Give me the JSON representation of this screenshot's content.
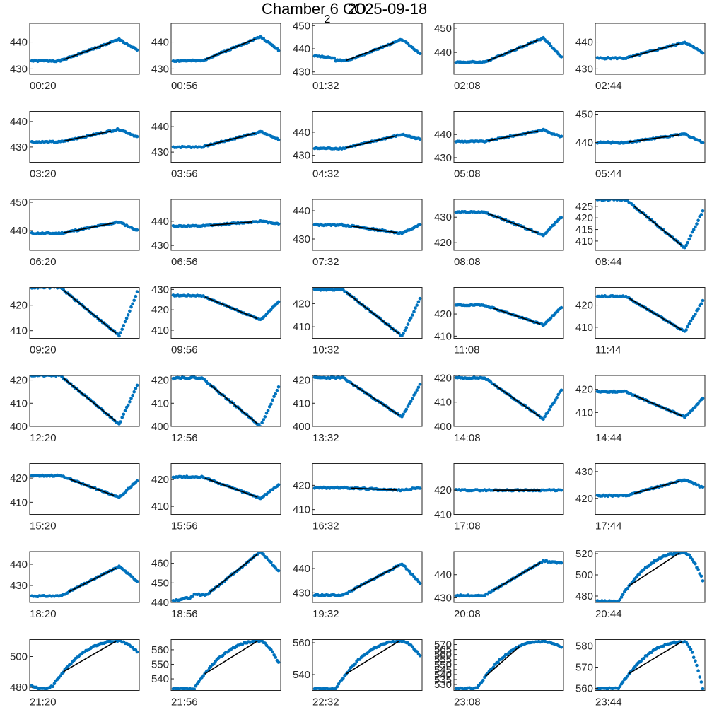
{
  "title": {
    "prefix": "Chamber 6 CO",
    "subscript": "2",
    "date": "2025-09-18"
  },
  "colors": {
    "points": "#0072bd",
    "fit": "#000000",
    "axes": "#262626"
  },
  "chart_data": {
    "type": "scatter",
    "layout_grid": {
      "rows": 8,
      "cols": 5
    },
    "xlabel": "",
    "ylabel": "",
    "panels": [
      {
        "label": "00:20",
        "yticks": [
          430,
          440
        ],
        "ylim": [
          428,
          447
        ],
        "base": 433,
        "peak": 441,
        "end": 437,
        "mode": "rise",
        "fit": [
          0.3,
          0.75
        ]
      },
      {
        "label": "00:56",
        "yticks": [
          430,
          440
        ],
        "ylim": [
          428,
          447
        ],
        "base": 433,
        "peak": 442,
        "end": 437,
        "mode": "rise",
        "fit": [
          0.3,
          0.78
        ]
      },
      {
        "label": "01:32",
        "yticks": [
          430,
          440,
          450
        ],
        "ylim": [
          429,
          451
        ],
        "base": 437,
        "dip": 435,
        "peak": 444,
        "end": 438,
        "mode": "dipRise",
        "fit": [
          0.3,
          0.75
        ]
      },
      {
        "label": "02:08",
        "yticks": [
          440,
          450
        ],
        "ylim": [
          431,
          452
        ],
        "base": 436,
        "peak": 446,
        "end": 438,
        "mode": "rise",
        "fit": [
          0.3,
          0.78
        ]
      },
      {
        "label": "02:44",
        "yticks": [
          430,
          440
        ],
        "ylim": [
          428,
          447
        ],
        "base": 434,
        "peak": 440,
        "end": 436,
        "mode": "rise",
        "fit": [
          0.3,
          0.78
        ]
      },
      {
        "label": "03:20",
        "yticks": [
          430,
          440
        ],
        "ylim": [
          424,
          444
        ],
        "base": 432,
        "peak": 437,
        "end": 434,
        "mode": "rise",
        "fit": [
          0.3,
          0.75
        ]
      },
      {
        "label": "03:56",
        "yticks": [
          430,
          440
        ],
        "ylim": [
          426,
          446
        ],
        "base": 432,
        "peak": 438,
        "end": 435,
        "mode": "rise",
        "fit": [
          0.3,
          0.78
        ]
      },
      {
        "label": "04:32",
        "yticks": [
          430,
          440
        ],
        "ylim": [
          427,
          449
        ],
        "base": 433,
        "peak": 439,
        "end": 437,
        "mode": "rise",
        "fit": [
          0.3,
          0.78
        ]
      },
      {
        "label": "05:08",
        "yticks": [
          430,
          440
        ],
        "ylim": [
          428,
          450
        ],
        "base": 437,
        "peak": 442,
        "end": 439,
        "mode": "rise",
        "fit": [
          0.3,
          0.78
        ]
      },
      {
        "label": "05:44",
        "yticks": [
          440,
          450
        ],
        "ylim": [
          433,
          451
        ],
        "base": 440,
        "peak": 443,
        "end": 440,
        "mode": "rise",
        "fit": [
          0.3,
          0.78
        ]
      },
      {
        "label": "06:20",
        "yticks": [
          440,
          450
        ],
        "ylim": [
          433,
          451
        ],
        "base": 439,
        "peak": 443,
        "end": 440,
        "mode": "rise",
        "fit": [
          0.3,
          0.78
        ]
      },
      {
        "label": "06:56",
        "yticks": [
          430,
          440
        ],
        "ylim": [
          428,
          449
        ],
        "base": 438,
        "peak": 440,
        "end": 439,
        "mode": "rise",
        "fit": [
          0.35,
          0.75
        ]
      },
      {
        "label": "07:32",
        "yticks": [
          430,
          440
        ],
        "ylim": [
          426,
          444
        ],
        "base": 435,
        "peak": 432,
        "end": 435,
        "mode": "fall",
        "fit": [
          0.35,
          0.78
        ]
      },
      {
        "label": "08:08",
        "yticks": [
          420,
          430
        ],
        "ylim": [
          417,
          437
        ],
        "base": 432,
        "peak": 423,
        "end": 430,
        "mode": "fall",
        "fit": [
          0.3,
          0.78
        ]
      },
      {
        "label": "08:44",
        "yticks": [
          410,
          415,
          420,
          425
        ],
        "ylim": [
          406,
          428
        ],
        "base": 428,
        "peak": 407,
        "end": 423,
        "mode": "fall",
        "fit": [
          0.35,
          0.8
        ]
      },
      {
        "label": "09:20",
        "yticks": [
          410,
          420
        ],
        "ylim": [
          407,
          427
        ],
        "base": 427,
        "peak": 408,
        "end": 425,
        "mode": "fall",
        "fit": [
          0.3,
          0.8
        ]
      },
      {
        "label": "09:56",
        "yticks": [
          410,
          420,
          430
        ],
        "ylim": [
          406,
          431
        ],
        "base": 427,
        "peak": 415,
        "end": 424,
        "mode": "fall",
        "fit": [
          0.3,
          0.8
        ]
      },
      {
        "label": "10:32",
        "yticks": [
          410,
          420
        ],
        "ylim": [
          405,
          427
        ],
        "base": 426,
        "peak": 406,
        "end": 422,
        "mode": "fall",
        "fit": [
          0.3,
          0.8
        ]
      },
      {
        "label": "11:08",
        "yticks": [
          410,
          420
        ],
        "ylim": [
          409,
          432
        ],
        "base": 424,
        "peak": 415,
        "end": 423,
        "mode": "fall",
        "fit": [
          0.35,
          0.8
        ]
      },
      {
        "label": "11:44",
        "yticks": [
          410,
          420
        ],
        "ylim": [
          405,
          428
        ],
        "base": 424,
        "peak": 408,
        "end": 422,
        "mode": "fall",
        "fit": [
          0.3,
          0.8
        ]
      },
      {
        "label": "12:20",
        "yticks": [
          400,
          410,
          420
        ],
        "ylim": [
          400,
          422
        ],
        "base": 422,
        "peak": 401,
        "end": 418,
        "mode": "fall",
        "fit": [
          0.3,
          0.8
        ]
      },
      {
        "label": "12:56",
        "yticks": [
          400,
          410,
          420
        ],
        "ylim": [
          400,
          422
        ],
        "base": 421,
        "peak": 400,
        "end": 417,
        "mode": "fall",
        "fit": [
          0.35,
          0.8
        ]
      },
      {
        "label": "13:32",
        "yticks": [
          400,
          410,
          420
        ],
        "ylim": [
          400,
          422
        ],
        "base": 421,
        "peak": 404,
        "end": 418,
        "mode": "fall",
        "fit": [
          0.35,
          0.8
        ]
      },
      {
        "label": "14:08",
        "yticks": [
          400,
          410,
          420
        ],
        "ylim": [
          400,
          421
        ],
        "base": 420,
        "peak": 403,
        "end": 415,
        "mode": "fall",
        "fit": [
          0.35,
          0.8
        ]
      },
      {
        "label": "14:44",
        "yticks": [
          410,
          420
        ],
        "ylim": [
          404,
          426
        ],
        "base": 419,
        "peak": 408,
        "end": 416,
        "mode": "fall",
        "fit": [
          0.35,
          0.8
        ]
      },
      {
        "label": "15:20",
        "yticks": [
          410,
          420
        ],
        "ylim": [
          405,
          426
        ],
        "base": 421,
        "peak": 412,
        "end": 419,
        "mode": "fall",
        "fit": [
          0.35,
          0.78
        ]
      },
      {
        "label": "15:56",
        "yticks": [
          410,
          420
        ],
        "ylim": [
          407,
          426
        ],
        "base": 421,
        "peak": 413,
        "end": 418,
        "mode": "fall",
        "fit": [
          0.3,
          0.8
        ]
      },
      {
        "label": "16:32",
        "yticks": [
          410,
          420
        ],
        "ylim": [
          408,
          429
        ],
        "base": 419,
        "peak": 418,
        "end": 419,
        "mode": "fall",
        "fit": [
          0.35,
          0.78
        ]
      },
      {
        "label": "17:08",
        "yticks": [
          410,
          420
        ],
        "ylim": [
          410,
          431
        ],
        "base": 420,
        "peak": 420,
        "end": 420,
        "mode": "flat",
        "fit": [
          0.35,
          0.8
        ]
      },
      {
        "label": "17:44",
        "yticks": [
          420,
          430
        ],
        "ylim": [
          414,
          433
        ],
        "base": 421,
        "peak": 427,
        "end": 424,
        "mode": "rise",
        "fit": [
          0.35,
          0.78
        ]
      },
      {
        "label": "18:20",
        "yticks": [
          430,
          440
        ],
        "ylim": [
          422,
          446
        ],
        "base": 425,
        "peak": 439,
        "end": 432,
        "mode": "rise",
        "fit": [
          0.35,
          0.8
        ]
      },
      {
        "label": "18:56",
        "yticks": [
          440,
          450,
          460
        ],
        "ylim": [
          440,
          466
        ],
        "base": 441,
        "dip": 444,
        "peak": 466,
        "end": 456,
        "mode": "dipRise",
        "fit": [
          0.35,
          0.8
        ]
      },
      {
        "label": "19:32",
        "yticks": [
          430,
          440
        ],
        "ylim": [
          426,
          447
        ],
        "base": 429,
        "peak": 442,
        "end": 434,
        "mode": "rise",
        "fit": [
          0.35,
          0.8
        ]
      },
      {
        "label": "20:08",
        "yticks": [
          430,
          440
        ],
        "ylim": [
          428,
          450
        ],
        "base": 431,
        "peak": 446,
        "end": 445,
        "mode": "rise",
        "fit": [
          0.35,
          0.8
        ]
      },
      {
        "label": "20:44",
        "yticks": [
          480,
          500,
          520
        ],
        "ylim": [
          474,
          522
        ],
        "base": 475,
        "peak": 521,
        "end": 495,
        "mode": "sRise",
        "fit": [
          0.3,
          0.78
        ]
      },
      {
        "label": "21:20",
        "yticks": [
          480,
          500
        ],
        "ylim": [
          478,
          511
        ],
        "base": 481,
        "dip": 479,
        "peak": 510,
        "end": 503,
        "mode": "sRise",
        "fit": [
          0.3,
          0.8
        ]
      },
      {
        "label": "21:56",
        "yticks": [
          540,
          550,
          560
        ],
        "ylim": [
          532,
          567
        ],
        "base": 533,
        "peak": 566,
        "end": 551,
        "mode": "sRise",
        "fit": [
          0.3,
          0.8
        ]
      },
      {
        "label": "22:32",
        "yticks": [
          540,
          560
        ],
        "ylim": [
          530,
          562
        ],
        "base": 531,
        "peak": 561,
        "end": 552,
        "mode": "sRise",
        "fit": [
          0.3,
          0.8
        ]
      },
      {
        "label": "23:08",
        "yticks": [
          530,
          535,
          540,
          545,
          550,
          555,
          560,
          565,
          570
        ],
        "ylim": [
          524,
          575
        ],
        "base": 526,
        "peak": 573,
        "end": 567,
        "mode": "sRise",
        "fit": [
          0.28,
          0.6
        ]
      },
      {
        "label": "23:44",
        "yticks": [
          560,
          570,
          580
        ],
        "ylim": [
          559,
          583
        ],
        "base": 560,
        "peak": 582,
        "end": 560,
        "mode": "sRise",
        "fit": [
          0.3,
          0.8
        ]
      }
    ]
  }
}
